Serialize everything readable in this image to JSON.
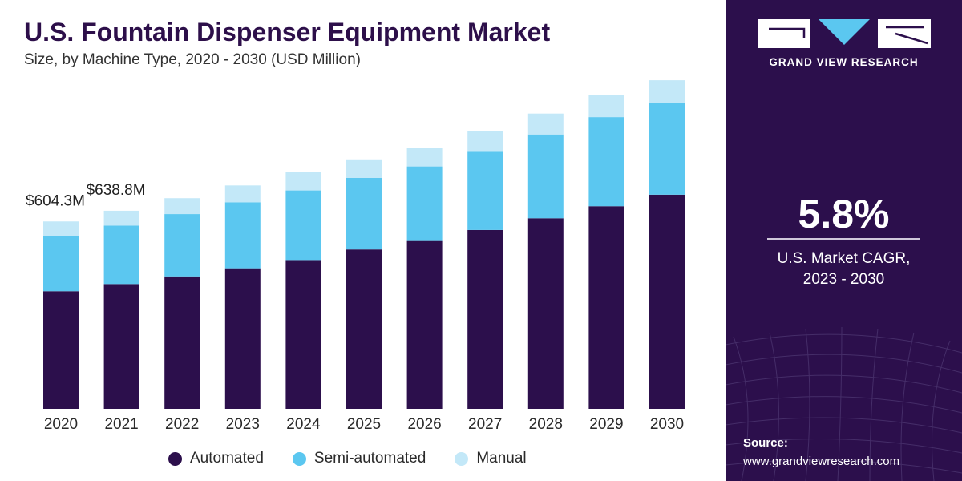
{
  "header": {
    "title": "U.S. Fountain Dispenser Equipment Market",
    "subtitle": "Size, by Machine Type, 2020 - 2030 (USD Million)"
  },
  "colors": {
    "automated": "#2c0f4c",
    "semi_automated": "#5bc7f0",
    "manual": "#c3e8f8",
    "panel": "#2c0f4c"
  },
  "chart_data": {
    "type": "bar",
    "stacked": true,
    "categories": [
      "2020",
      "2021",
      "2022",
      "2023",
      "2024",
      "2025",
      "2026",
      "2027",
      "2028",
      "2029",
      "2030"
    ],
    "series": [
      {
        "name": "Automated",
        "values": [
          379.4,
          402.5,
          427.1,
          453.3,
          479.9,
          514.0,
          541.3,
          576.8,
          614.6,
          653.5,
          690.7
        ]
      },
      {
        "name": "Semi-automated",
        "values": [
          178.2,
          188.6,
          201.0,
          212.9,
          224.4,
          230.6,
          240.5,
          254.9,
          270.3,
          287.3,
          295.1
        ]
      },
      {
        "name": "Manual",
        "values": [
          46.7,
          47.7,
          51.3,
          54.3,
          58.6,
          60.0,
          60.9,
          64.6,
          67.3,
          71.0,
          73.9
        ]
      }
    ],
    "annotations": [
      {
        "category": "2020",
        "text": "$604.3M"
      },
      {
        "category": "2021",
        "text": "$638.8M"
      }
    ],
    "xlabel": "",
    "ylabel": "",
    "ylim": [
      0,
      1060
    ],
    "grid": false,
    "legend_position": "bottom"
  },
  "legend": {
    "items": [
      {
        "label": "Automated"
      },
      {
        "label": "Semi-automated"
      },
      {
        "label": "Manual"
      }
    ]
  },
  "side_panel": {
    "brand": "GRAND VIEW RESEARCH",
    "cagr_value": "5.8%",
    "cagr_label_line1": "U.S. Market CAGR,",
    "cagr_label_line2": "2023 - 2030",
    "source_label": "Source:",
    "source_url": "www.grandviewresearch.com"
  }
}
